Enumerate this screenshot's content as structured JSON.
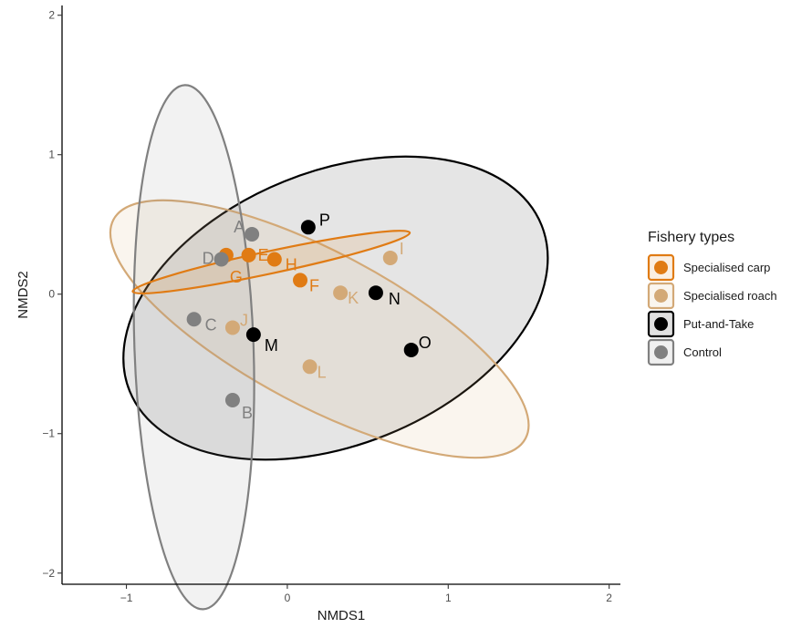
{
  "chart_data": {
    "type": "scatter",
    "xlabel": "NMDS1",
    "ylabel": "NMDS2",
    "xlim": [
      -1.4,
      2.07
    ],
    "ylim": [
      -2.08,
      2.07
    ],
    "x_ticks": [
      -1,
      0,
      1,
      2
    ],
    "y_ticks": [
      -2,
      -1,
      0,
      1,
      2
    ],
    "grid": false,
    "legend": {
      "title": "Fishery types",
      "placement": "right",
      "entries": [
        "Specialised carp",
        "Specialised roach",
        "Put-and-Take",
        "Control"
      ]
    },
    "colors": {
      "Specialised carp": "#e07b14",
      "Specialised roach": "#d3a977",
      "Put-and-Take": "#000000",
      "Control": "#808080"
    },
    "series": [
      {
        "name": "Specialised carp",
        "points": [
          {
            "label": "E",
            "x": -0.24,
            "y": 0.28
          },
          {
            "label": "G",
            "x": -0.38,
            "y": 0.28
          },
          {
            "label": "H",
            "x": -0.08,
            "y": 0.25
          },
          {
            "label": "F",
            "x": 0.08,
            "y": 0.1
          }
        ],
        "ellipse": {
          "cx": -0.1,
          "cy": 0.23,
          "rx": 0.88,
          "ry": 0.08,
          "angle_deg": -12
        }
      },
      {
        "name": "Specialised roach",
        "points": [
          {
            "label": "I",
            "x": 0.64,
            "y": 0.26
          },
          {
            "label": "K",
            "x": 0.33,
            "y": 0.01
          },
          {
            "label": "J",
            "x": -0.34,
            "y": -0.24
          },
          {
            "label": "L",
            "x": 0.14,
            "y": -0.52
          }
        ],
        "ellipse": {
          "cx": 0.2,
          "cy": -0.25,
          "rx": 1.45,
          "ry": 0.55,
          "angle_deg": 28
        }
      },
      {
        "name": "Put-and-Take",
        "points": [
          {
            "label": "P",
            "x": 0.13,
            "y": 0.48
          },
          {
            "label": "N",
            "x": 0.55,
            "y": 0.01
          },
          {
            "label": "O",
            "x": 0.77,
            "y": -0.4
          },
          {
            "label": "M",
            "x": -0.21,
            "y": -0.29
          }
        ],
        "ellipse": {
          "cx": 0.3,
          "cy": -0.1,
          "rx": 1.38,
          "ry": 0.98,
          "angle_deg": -22
        }
      },
      {
        "name": "Control",
        "points": [
          {
            "label": "A",
            "x": -0.22,
            "y": 0.43
          },
          {
            "label": "D",
            "x": -0.41,
            "y": 0.25
          },
          {
            "label": "C",
            "x": -0.58,
            "y": -0.18
          },
          {
            "label": "B",
            "x": -0.34,
            "y": -0.76
          }
        ],
        "ellipse": {
          "cx": -0.58,
          "cy": -0.38,
          "rx": 0.37,
          "ry": 1.88,
          "angle_deg": -2
        }
      }
    ]
  }
}
